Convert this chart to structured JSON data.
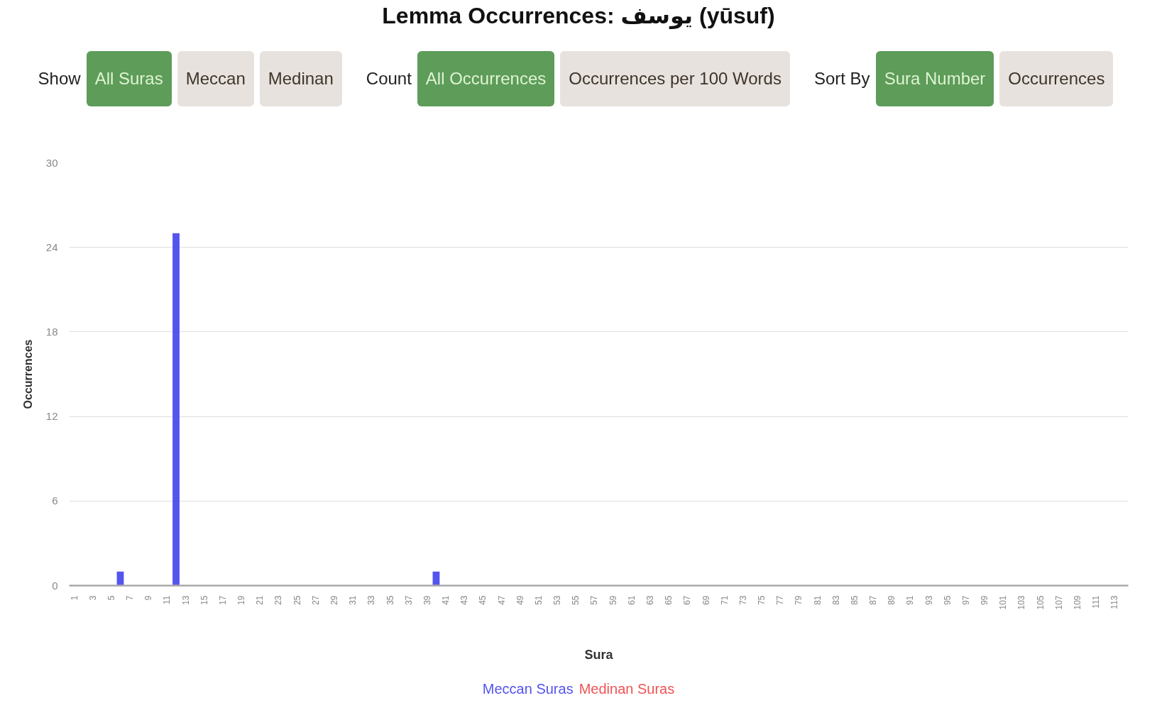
{
  "chart_data": {
    "type": "bar",
    "title": "Lemma Occurrences: يوسف (yūsuf)",
    "xlabel": "Sura",
    "ylabel": "Occurrences",
    "annotations": [
      "Show",
      "All Suras",
      "Meccan",
      "Medinan",
      "Count",
      "All Occurrences",
      "Occurrences per 100 Words",
      "Sort By",
      "Sura Number",
      "Occurrences"
    ],
    "categories": [
      "1",
      null,
      "3",
      null,
      "5",
      null,
      "7",
      null,
      "9",
      null,
      "11",
      null,
      "13",
      null,
      "15",
      null,
      "17",
      null,
      "19",
      null,
      "21",
      null,
      "23",
      null,
      "25",
      null,
      "27",
      null,
      "29",
      null,
      "31",
      null,
      "33",
      null,
      "35",
      null,
      "37",
      null,
      "39",
      null,
      "41",
      null,
      "43",
      null,
      "45",
      null,
      "47",
      null,
      "49",
      null,
      "51",
      null,
      "53",
      null,
      "55",
      null,
      "57",
      null,
      "59",
      null,
      "61",
      null,
      "63",
      null,
      "65",
      null,
      "67",
      null,
      "69",
      null,
      "71",
      null,
      "73",
      null,
      "75",
      null,
      "77",
      null,
      "79",
      null,
      "81",
      null,
      "83",
      null,
      "85",
      null,
      "87",
      null,
      "89",
      null,
      "91",
      null,
      "93",
      null,
      "95",
      null,
      "97",
      null,
      "99",
      null,
      "101",
      null,
      "103",
      null,
      "105",
      null,
      "107",
      null,
      "109",
      null,
      "111",
      null,
      "113",
      null
    ],
    "series": [
      {
        "name": "Meccan Suras",
        "color": "#5454ee",
        "values": [
          0,
          null,
          null,
          null,
          null,
          1,
          0,
          null,
          null,
          0,
          0,
          25,
          null,
          0,
          0,
          0,
          0,
          0,
          0,
          0,
          0,
          null,
          0,
          null,
          0,
          0,
          0,
          0,
          0,
          0,
          0,
          0,
          null,
          0,
          0,
          0,
          0,
          0,
          0,
          1,
          0,
          0,
          0,
          0,
          0,
          0,
          null,
          null,
          null,
          0,
          0,
          0,
          0,
          0,
          null,
          0,
          null,
          null,
          null,
          null,
          null,
          null,
          null,
          null,
          null,
          null,
          0,
          0,
          0,
          0,
          0,
          0,
          0,
          0,
          0,
          null,
          0,
          0,
          0,
          0,
          0,
          0,
          0,
          0,
          0,
          0,
          0,
          0,
          0,
          0,
          0,
          0,
          0,
          0,
          0,
          0,
          0,
          null,
          null,
          0,
          0,
          0,
          0,
          0,
          0,
          0,
          0,
          0,
          0,
          null,
          0,
          0,
          0,
          0
        ]
      },
      {
        "name": "Medinan Suras",
        "color": "#ee5454",
        "values": [
          null,
          0,
          0,
          0,
          0,
          null,
          null,
          0,
          0,
          null,
          null,
          null,
          0,
          null,
          null,
          null,
          null,
          null,
          null,
          null,
          null,
          0,
          null,
          0,
          null,
          null,
          null,
          null,
          null,
          null,
          null,
          null,
          0,
          null,
          null,
          null,
          null,
          null,
          null,
          null,
          null,
          null,
          null,
          null,
          null,
          null,
          0,
          0,
          0,
          null,
          null,
          null,
          null,
          null,
          0,
          null,
          0,
          0,
          0,
          0,
          0,
          0,
          0,
          0,
          0,
          0,
          null,
          null,
          null,
          null,
          null,
          null,
          null,
          null,
          null,
          0,
          null,
          null,
          null,
          null,
          null,
          null,
          null,
          null,
          null,
          null,
          null,
          null,
          null,
          null,
          null,
          null,
          null,
          null,
          null,
          null,
          null,
          0,
          0,
          null,
          null,
          null,
          null,
          null,
          null,
          null,
          null,
          null,
          null,
          0,
          null,
          null,
          null,
          null
        ]
      }
    ],
    "ylim": [
      0,
      30
    ],
    "yticks": [
      0,
      6,
      12,
      18,
      24,
      30
    ],
    "grid": "y",
    "legend": "bottom"
  }
}
